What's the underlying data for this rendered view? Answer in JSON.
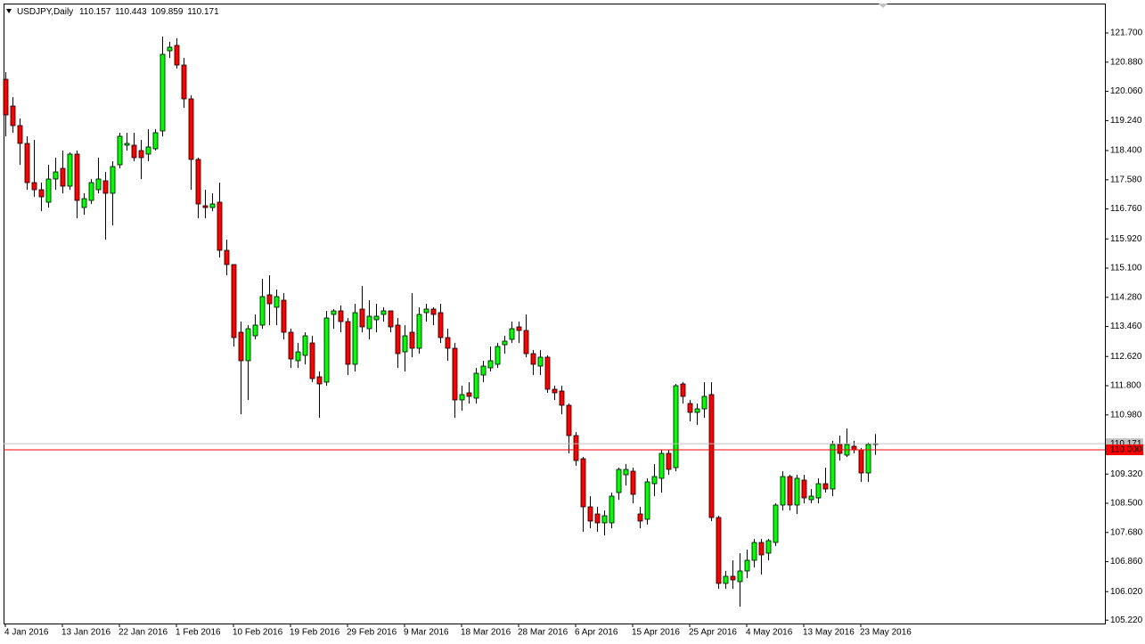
{
  "chart_data": {
    "type": "candlestick",
    "header": {
      "symbol": "USDJPY,Daily",
      "values": [
        110.157,
        110.443,
        109.859,
        110.171
      ]
    },
    "categories": [
      "4 Jan 2016",
      null,
      null,
      null,
      null,
      null,
      null,
      null,
      "13 Jan 2016",
      null,
      null,
      null,
      null,
      null,
      null,
      null,
      "22 Jan 2016",
      null,
      null,
      null,
      null,
      null,
      null,
      null,
      "1 Feb 2016",
      null,
      null,
      null,
      null,
      null,
      null,
      null,
      "10 Feb 2016",
      null,
      null,
      null,
      null,
      null,
      null,
      null,
      "19 Feb 2016",
      null,
      null,
      null,
      null,
      null,
      null,
      null,
      "29 Feb 2016",
      null,
      null,
      null,
      null,
      null,
      null,
      null,
      "9 Mar 2016",
      null,
      null,
      null,
      null,
      null,
      null,
      null,
      "18 Mar 2016",
      null,
      null,
      null,
      null,
      null,
      null,
      null,
      "28 Mar 2016",
      null,
      null,
      null,
      null,
      null,
      null,
      null,
      "6 Apr 2016",
      null,
      null,
      null,
      null,
      null,
      null,
      null,
      "15 Apr 2016",
      null,
      null,
      null,
      null,
      null,
      null,
      null,
      "25 Apr 2016",
      null,
      null,
      null,
      null,
      null,
      null,
      null,
      "4 May 2016",
      null,
      null,
      null,
      null,
      null,
      null,
      null,
      "13 May 2016",
      null,
      null,
      null,
      null,
      null,
      null,
      null,
      "23 May 2016",
      null,
      null
    ],
    "open": [
      120.4,
      119.65,
      119.1,
      118.6,
      117.5,
      117.3,
      116.95,
      117.6,
      117.9,
      117.4,
      118.3,
      116.8,
      117.0,
      117.3,
      117.55,
      117.2,
      118.0,
      118.55,
      118.55,
      118.4,
      118.3,
      118.45,
      118.95,
      121.2,
      121.35,
      120.8,
      119.85,
      118.15,
      116.85,
      116.8,
      116.95,
      115.6,
      115.2,
      113.3,
      112.5,
      113.2,
      113.5,
      114.35,
      114.0,
      114.2,
      113.3,
      112.5,
      112.65,
      113.0,
      112.05,
      111.9,
      113.8,
      113.9,
      113.6,
      112.4,
      113.95,
      113.4,
      113.65,
      113.8,
      113.9,
      113.5,
      112.75,
      113.3,
      112.85,
      113.85,
      113.95,
      113.85,
      113.15,
      112.85,
      111.4,
      111.6,
      111.45,
      112.1,
      112.3,
      112.4,
      112.95,
      113.1,
      113.45,
      113.35,
      112.7,
      112.35,
      112.6,
      111.7,
      111.65,
      111.25,
      110.4,
      109.75,
      108.4,
      108.2,
      107.95,
      107.95,
      108.8,
      109.3,
      109.4,
      108.2,
      108.05,
      109.05,
      109.2,
      109.9,
      109.5,
      111.85,
      111.3,
      111.05,
      111.15,
      111.55,
      108.1,
      106.25,
      106.45,
      106.3,
      106.6,
      106.9,
      107.4,
      107.1,
      107.4,
      108.45,
      109.25,
      108.45,
      109.15,
      108.6,
      108.65,
      109.05,
      108.9,
      110.15,
      109.85,
      110.1,
      110.0,
      109.35,
      110.157
    ],
    "high": [
      120.6,
      119.9,
      119.3,
      118.8,
      118.7,
      117.5,
      118.0,
      118.2,
      118.4,
      118.35,
      118.4,
      117.2,
      117.6,
      118.2,
      117.8,
      118.1,
      118.9,
      118.9,
      118.9,
      118.7,
      119.0,
      119.0,
      121.6,
      121.45,
      121.55,
      121.0,
      119.95,
      118.2,
      117.3,
      117.2,
      117.5,
      115.9,
      115.2,
      113.6,
      113.5,
      113.8,
      114.8,
      114.9,
      114.5,
      114.4,
      113.4,
      113.0,
      113.3,
      113.2,
      112.2,
      113.9,
      113.95,
      114.05,
      113.7,
      114.1,
      114.6,
      114.2,
      114.1,
      114.0,
      113.9,
      113.7,
      113.5,
      114.4,
      114.0,
      114.1,
      114.0,
      114.1,
      113.4,
      113.0,
      111.8,
      111.9,
      112.3,
      112.5,
      112.9,
      113.0,
      113.2,
      113.6,
      113.6,
      113.8,
      112.8,
      112.8,
      112.65,
      111.8,
      111.8,
      111.3,
      110.5,
      109.8,
      108.7,
      108.4,
      108.3,
      108.8,
      109.5,
      109.6,
      109.5,
      108.4,
      109.2,
      109.6,
      110.0,
      110.0,
      111.85,
      111.9,
      111.4,
      111.3,
      111.9,
      111.9,
      108.15,
      106.6,
      106.9,
      107.1,
      107.2,
      107.5,
      107.5,
      107.5,
      108.5,
      109.4,
      109.3,
      109.3,
      109.3,
      108.9,
      109.2,
      109.5,
      110.25,
      110.4,
      110.6,
      110.25,
      110.05,
      110.2,
      110.443
    ],
    "low": [
      118.8,
      118.9,
      118.0,
      117.3,
      117.1,
      116.7,
      116.8,
      117.3,
      117.2,
      117.3,
      116.5,
      116.6,
      116.9,
      117.2,
      115.9,
      116.3,
      117.9,
      118.4,
      118.1,
      117.6,
      118.1,
      118.4,
      118.8,
      121.0,
      120.7,
      119.6,
      117.3,
      116.5,
      116.5,
      116.7,
      115.4,
      114.9,
      112.9,
      111.0,
      111.4,
      113.1,
      113.4,
      113.5,
      113.5,
      113.1,
      112.3,
      112.3,
      112.4,
      111.9,
      110.9,
      111.8,
      113.4,
      113.3,
      112.1,
      112.2,
      113.3,
      113.1,
      113.3,
      113.6,
      113.3,
      112.3,
      112.2,
      112.6,
      112.7,
      113.6,
      113.5,
      113.0,
      112.5,
      110.9,
      111.1,
      111.3,
      111.3,
      111.9,
      112.2,
      112.3,
      112.7,
      113.0,
      113.0,
      112.6,
      112.1,
      112.1,
      111.6,
      111.4,
      111.0,
      109.9,
      109.55,
      107.7,
      107.8,
      107.7,
      107.6,
      107.8,
      108.6,
      109.0,
      108.5,
      107.8,
      107.9,
      108.7,
      108.8,
      109.3,
      109.4,
      111.3,
      110.8,
      110.7,
      110.9,
      108.0,
      106.1,
      106.1,
      106.1,
      105.6,
      106.4,
      106.7,
      106.5,
      106.9,
      107.3,
      108.3,
      108.3,
      108.2,
      108.5,
      108.5,
      108.5,
      108.8,
      108.7,
      109.7,
      109.8,
      109.9,
      109.1,
      109.1,
      109.859
    ],
    "close": [
      119.4,
      119.1,
      118.6,
      117.5,
      117.3,
      117.1,
      117.6,
      117.8,
      117.4,
      118.3,
      117.0,
      117.05,
      117.5,
      117.6,
      117.2,
      117.95,
      118.8,
      118.6,
      118.2,
      118.2,
      118.5,
      118.9,
      121.1,
      121.3,
      120.8,
      119.85,
      118.15,
      116.9,
      116.8,
      116.9,
      115.6,
      115.2,
      113.15,
      112.5,
      113.4,
      113.5,
      114.3,
      114.1,
      114.3,
      113.3,
      112.55,
      112.75,
      113.2,
      112.0,
      111.85,
      113.7,
      113.9,
      113.6,
      112.4,
      113.85,
      113.45,
      113.75,
      113.75,
      113.9,
      113.45,
      112.7,
      113.2,
      112.85,
      113.8,
      113.95,
      113.8,
      113.15,
      112.85,
      111.4,
      111.55,
      111.5,
      112.15,
      112.35,
      112.5,
      112.9,
      113.05,
      113.4,
      113.35,
      112.7,
      112.4,
      112.6,
      111.7,
      111.6,
      111.25,
      110.4,
      109.7,
      108.4,
      108.0,
      107.95,
      108.15,
      108.7,
      109.45,
      109.45,
      108.75,
      108.0,
      109.1,
      109.25,
      109.9,
      109.45,
      111.8,
      111.5,
      111.05,
      111.15,
      111.5,
      108.1,
      106.25,
      106.45,
      106.35,
      106.6,
      106.9,
      107.4,
      107.05,
      107.45,
      108.45,
      109.25,
      108.45,
      109.2,
      108.65,
      108.7,
      109.05,
      108.9,
      110.15,
      109.9,
      110.15,
      110.0,
      109.35,
      110.15,
      110.171
    ],
    "up_color": "#00ff00",
    "down_color": "#ff0000",
    "ylim": [
      105.125,
      122.525
    ],
    "yticks": [
      {
        "value": 121.7,
        "label": "121.700"
      },
      {
        "value": 120.88,
        "label": "120.880"
      },
      {
        "value": 120.06,
        "label": "120.060"
      },
      {
        "value": 119.24,
        "label": "119.240"
      },
      {
        "value": 118.4,
        "label": "118.400"
      },
      {
        "value": 117.58,
        "label": "117.580"
      },
      {
        "value": 116.76,
        "label": "116.760"
      },
      {
        "value": 115.92,
        "label": "115.920"
      },
      {
        "value": 115.1,
        "label": "115.100"
      },
      {
        "value": 114.28,
        "label": "114.280"
      },
      {
        "value": 113.46,
        "label": "113.460"
      },
      {
        "value": 112.62,
        "label": "112.620"
      },
      {
        "value": 111.8,
        "label": "111.800"
      },
      {
        "value": 110.98,
        "label": "110.980"
      },
      {
        "value": 109.32,
        "label": "109.320"
      },
      {
        "value": 108.5,
        "label": "108.500"
      },
      {
        "value": 107.68,
        "label": "107.680"
      },
      {
        "value": 106.86,
        "label": "106.860"
      },
      {
        "value": 106.02,
        "label": "106.020"
      },
      {
        "value": 105.22,
        "label": "105.220"
      }
    ],
    "lines": [
      {
        "value": 110.171,
        "label": "110.171",
        "color": "#c0c0c0"
      },
      {
        "value": 110.0,
        "label": "110.000",
        "color": "#ff0000"
      }
    ]
  }
}
